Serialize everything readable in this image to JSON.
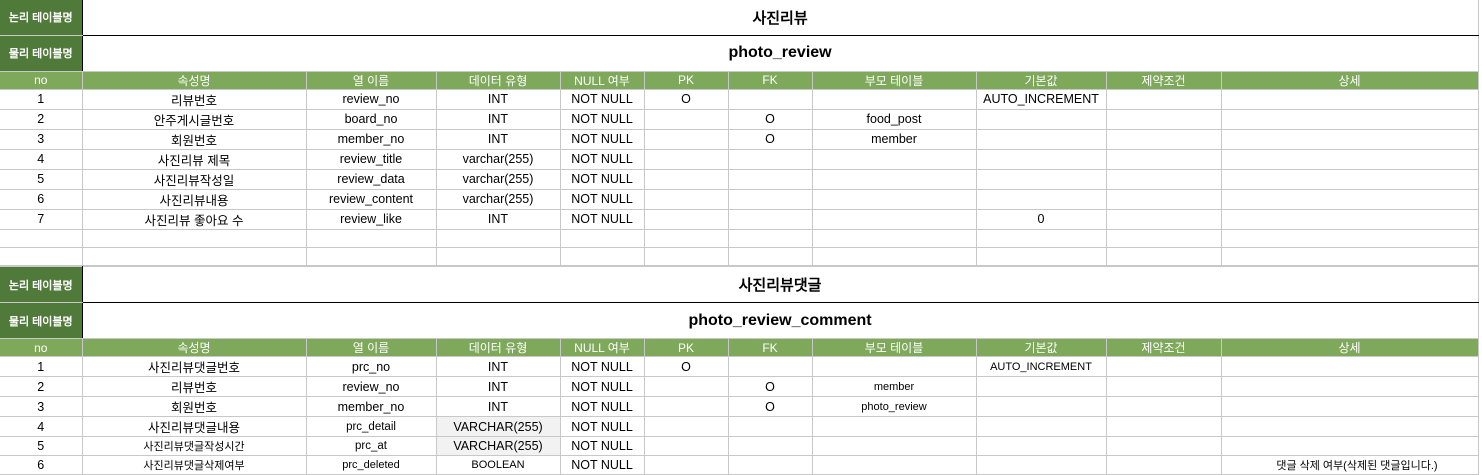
{
  "labels": {
    "logical_table_name": "논리 테이블명",
    "physical_table_name": "물리 테이블명"
  },
  "columns": [
    "no",
    "속성명",
    "열 이름",
    "데이터 유형",
    "NULL 여부",
    "PK",
    "FK",
    "부모 테이블",
    "기본값",
    "제약조건",
    "상세"
  ],
  "tables": [
    {
      "logical_name": "사진리뷰",
      "physical_name": "photo_review",
      "rows": [
        {
          "no": "1",
          "attr": "리뷰번호",
          "col": "review_no",
          "type": "INT",
          "null": "NOT NULL",
          "pk": "O",
          "fk": "",
          "parent": "",
          "default": "AUTO_INCREMENT",
          "constraint": "",
          "detail": ""
        },
        {
          "no": "2",
          "attr": "안주게시글번호",
          "col": "board_no",
          "type": "INT",
          "null": "NOT NULL",
          "pk": "",
          "fk": "O",
          "parent": "food_post",
          "default": "",
          "constraint": "",
          "detail": ""
        },
        {
          "no": "3",
          "attr": "회원번호",
          "col": "member_no",
          "type": "INT",
          "null": "NOT NULL",
          "pk": "",
          "fk": "O",
          "parent": "member",
          "default": "",
          "constraint": "",
          "detail": ""
        },
        {
          "no": "4",
          "attr": "사진리뷰 제목",
          "col": "review_title",
          "type": "varchar(255)",
          "null": "NOT NULL",
          "pk": "",
          "fk": "",
          "parent": "",
          "default": "",
          "constraint": "",
          "detail": ""
        },
        {
          "no": "5",
          "attr": "사진리뷰작성일",
          "col": "review_data",
          "type": "varchar(255)",
          "null": "NOT NULL",
          "pk": "",
          "fk": "",
          "parent": "",
          "default": "",
          "constraint": "",
          "detail": ""
        },
        {
          "no": "6",
          "attr": "사진리뷰내용",
          "col": "review_content",
          "type": "varchar(255)",
          "null": "NOT NULL",
          "pk": "",
          "fk": "",
          "parent": "",
          "default": "",
          "constraint": "",
          "detail": ""
        },
        {
          "no": "7",
          "attr": "사진리뷰 좋아요 수",
          "col": "review_like",
          "type": "INT",
          "null": "NOT NULL",
          "pk": "",
          "fk": "",
          "parent": "",
          "default": "0",
          "constraint": "",
          "detail": ""
        }
      ]
    },
    {
      "logical_name": "사진리뷰댓글",
      "physical_name": "photo_review_comment",
      "rows": [
        {
          "no": "1",
          "attr": "사진리뷰댓글번호",
          "col": "prc_no",
          "type": "INT",
          "null": "NOT NULL",
          "pk": "O",
          "fk": "",
          "parent": "",
          "default": "AUTO_INCREMENT",
          "constraint": "",
          "detail": ""
        },
        {
          "no": "2",
          "attr": "리뷰번호",
          "col": "review_no",
          "type": "INT",
          "null": "NOT NULL",
          "pk": "",
          "fk": "O",
          "parent": "member",
          "default": "",
          "constraint": "",
          "detail": ""
        },
        {
          "no": "3",
          "attr": "회원번호",
          "col": "member_no",
          "type": "INT",
          "null": "NOT NULL",
          "pk": "",
          "fk": "O",
          "parent": "photo_review",
          "default": "",
          "constraint": "",
          "detail": ""
        },
        {
          "no": "4",
          "attr": "사진리뷰댓글내용",
          "col": "prc_detail",
          "type": "VARCHAR(255)",
          "null": "NOT NULL",
          "pk": "",
          "fk": "",
          "parent": "",
          "default": "",
          "constraint": "",
          "detail": ""
        },
        {
          "no": "5",
          "attr": "사진리뷰댓글작성시간",
          "col": "prc_at",
          "type": "VARCHAR(255)",
          "null": "NOT NULL",
          "pk": "",
          "fk": "",
          "parent": "",
          "default": "",
          "constraint": "",
          "detail": ""
        },
        {
          "no": "6",
          "attr": "사진리뷰댓글삭제여부",
          "col": "prc_deleted",
          "type": "BOOLEAN",
          "null": "NOT NULL",
          "pk": "",
          "fk": "",
          "parent": "",
          "default": "",
          "constraint": "",
          "detail": "댓글 삭제 여부(삭제된 댓글입니다.)"
        }
      ]
    }
  ]
}
